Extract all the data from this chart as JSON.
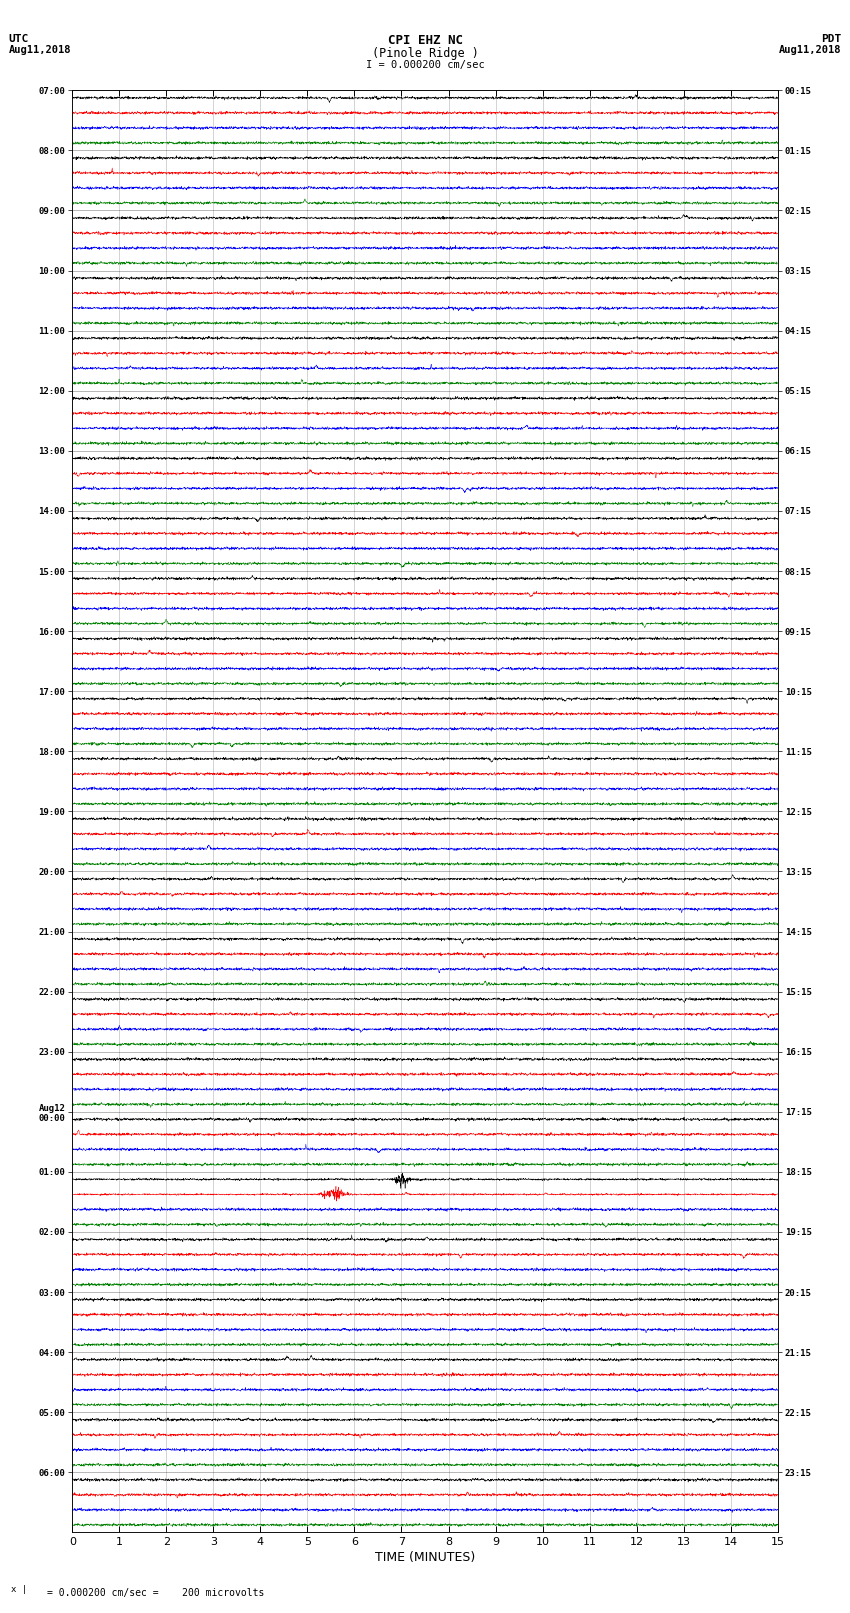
{
  "title_line1": "CPI EHZ NC",
  "title_line2": "(Pinole Ridge )",
  "title_scale": "I = 0.000200 cm/sec",
  "label_left_top": "UTC",
  "label_left_date": "Aug11,2018",
  "label_right_top": "PDT",
  "label_right_date": "Aug11,2018",
  "xlabel": "TIME (MINUTES)",
  "footer_text": "= 0.000200 cm/sec =    200 microvolts",
  "utc_labels": [
    "07:00",
    "08:00",
    "09:00",
    "10:00",
    "11:00",
    "12:00",
    "13:00",
    "14:00",
    "15:00",
    "16:00",
    "17:00",
    "18:00",
    "19:00",
    "20:00",
    "21:00",
    "22:00",
    "23:00",
    "Aug12\n00:00",
    "01:00",
    "02:00",
    "03:00",
    "04:00",
    "05:00",
    "06:00"
  ],
  "pdt_labels": [
    "00:15",
    "01:15",
    "02:15",
    "03:15",
    "04:15",
    "05:15",
    "06:15",
    "07:15",
    "08:15",
    "09:15",
    "10:15",
    "11:15",
    "12:15",
    "13:15",
    "14:15",
    "15:15",
    "16:15",
    "17:15",
    "18:15",
    "19:15",
    "20:15",
    "21:15",
    "22:15",
    "23:15"
  ],
  "n_groups": 24,
  "traces_per_group": 4,
  "n_cols": 3000,
  "trace_colors": [
    "black",
    "red",
    "blue",
    "green"
  ],
  "bg_color": "white",
  "x_min": 0,
  "x_max": 15,
  "x_ticks": [
    0,
    1,
    2,
    3,
    4,
    5,
    6,
    7,
    8,
    9,
    10,
    11,
    12,
    13,
    14,
    15
  ]
}
